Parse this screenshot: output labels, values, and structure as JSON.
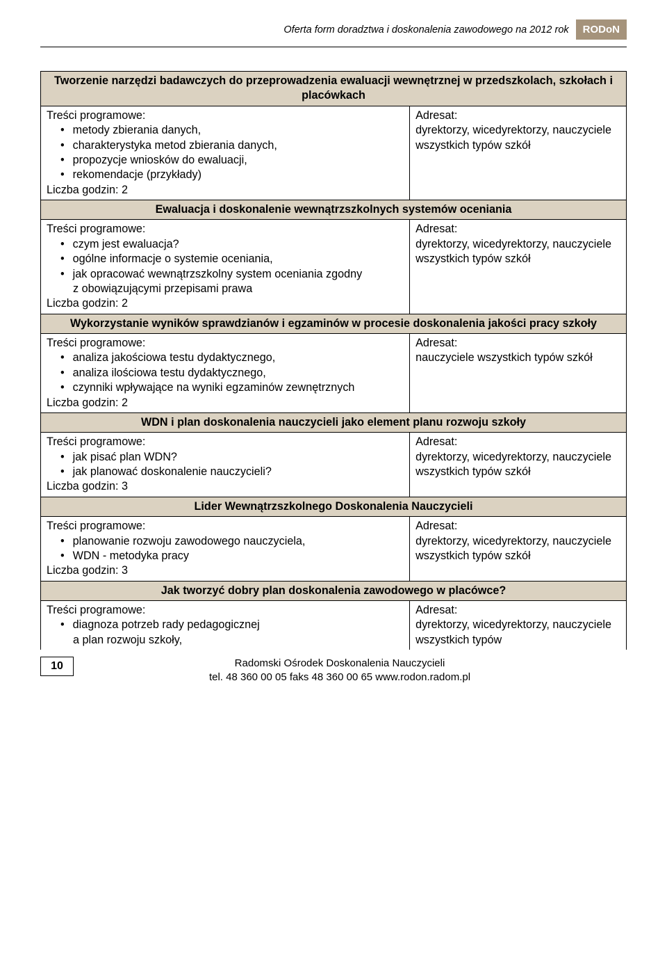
{
  "header": {
    "title": "Oferta form doradztwa i doskonalenia zawodowego na 2012 rok",
    "tag": "RODoN"
  },
  "sections": [
    {
      "title": "Tworzenie narzędzi badawczych do przeprowadzenia ewaluacji wewnętrznej w przedszkolach, szkołach i placówkach",
      "left_label": "Treści programowe:",
      "bullets": [
        "metody zbierania danych,",
        "charakterystyka metod zbierania danych,",
        "propozycje wniosków do ewaluacji,",
        "rekomendacje (przykłady)"
      ],
      "hours": "Liczba godzin: 2",
      "right_label": "Adresat:",
      "right_body": "dyrektorzy, wicedyrektorzy, nauczyciele wszystkich typów szkół"
    },
    {
      "title": "Ewaluacja i doskonalenie wewnątrzszkolnych systemów oceniania",
      "left_label": "Treści programowe:",
      "bullets": [
        "czym jest ewaluacja?",
        "ogólne informacje o systemie oceniania,",
        "jak opracować wewnątrzszkolny system oceniania zgodny",
        "z obowiązującymi przepisami prawa"
      ],
      "bullets_special": true,
      "hours": "Liczba godzin: 2",
      "right_label": "Adresat:",
      "right_body": "dyrektorzy, wicedyrektorzy, nauczyciele wszystkich typów szkół"
    },
    {
      "title": "Wykorzystanie wyników sprawdzianów i egzaminów w procesie doskonalenia jakości pracy szkoły",
      "left_label": "Treści programowe:",
      "bullets": [
        "analiza jakościowa testu dydaktycznego,",
        "analiza ilościowa testu dydaktycznego,",
        "czynniki wpływające na wyniki egzaminów zewnętrznych"
      ],
      "hours": "Liczba godzin: 2",
      "right_label": "Adresat:",
      "right_body": "nauczyciele wszystkich typów szkół"
    },
    {
      "title": "WDN i plan doskonalenia nauczycieli jako element planu rozwoju szkoły",
      "left_label": "Treści programowe:",
      "bullets": [
        "jak pisać plan WDN?",
        "jak planować doskonalenie nauczycieli?"
      ],
      "hours": "Liczba godzin: 3",
      "right_label": "Adresat:",
      "right_body": "dyrektorzy, wicedyrektorzy, nauczyciele wszystkich typów szkół"
    },
    {
      "title": "Lider Wewnątrzszkolnego Doskonalenia Nauczycieli",
      "left_label": "Treści programowe:",
      "bullets": [
        "planowanie rozwoju zawodowego nauczyciela,",
        "WDN - metodyka pracy"
      ],
      "hours": "Liczba godzin: 3",
      "right_label": "Adresat:",
      "right_body": "dyrektorzy, wicedyrektorzy, nauczyciele wszystkich typów szkół"
    },
    {
      "title": "Jak tworzyć dobry plan doskonalenia zawodowego w placówce?",
      "left_label": "Treści programowe:",
      "bullets": [
        "diagnoza potrzeb rady pedagogicznej",
        "a plan rozwoju szkoły,"
      ],
      "bullets_special2": true,
      "hours": "",
      "right_label": "Adresat:",
      "right_body": "dyrektorzy, wicedyrektorzy, nauczyciele wszystkich typów"
    }
  ],
  "footer": {
    "page": "10",
    "line1": "Radomski Ośrodek Doskonalenia Nauczycieli",
    "line2": "tel. 48 360 00 05   faks  48 360 00 65   www.rodon.radom.pl"
  }
}
